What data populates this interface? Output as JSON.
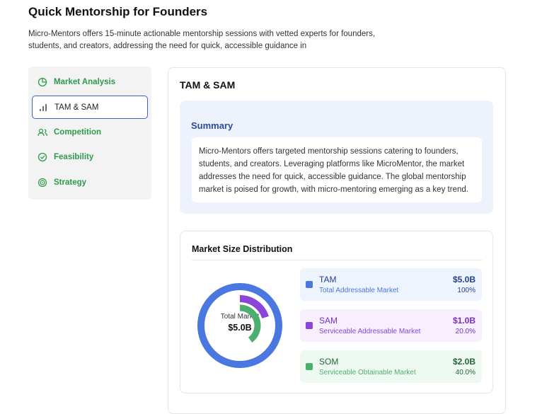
{
  "header": {
    "title": "Quick Mentorship for Founders",
    "description": "Micro-Mentors offers 15-minute actionable mentorship sessions with vetted experts for founders, students, and creators, addressing the need for quick, accessible guidance in"
  },
  "sidebar": {
    "active": 1,
    "items": [
      "Market Analysis",
      "TAM & SAM",
      "Competition",
      "Feasibility",
      "Strategy"
    ]
  },
  "main": {
    "heading": "TAM & SAM",
    "summary": {
      "title": "Summary",
      "text": "Micro-Mentors offers targeted mentorship sessions catering to founders, students, and creators. Leveraging platforms like MicroMentor, the market addresses the need for quick, accessible guidance. The global mentorship market is poised for growth, with micro-mentoring emerging as a key trend."
    },
    "market": {
      "title": "Market Size Distribution",
      "center_label": "Total Market",
      "center_value": "$5.0B",
      "segments": [
        {
          "name": "TAM",
          "description": "Total Addressable Market",
          "value": "$5.0B",
          "share": "100%",
          "color": "#4a78e0"
        },
        {
          "name": "SAM",
          "description": "Serviceable Addressable Market",
          "value": "$1.0B",
          "share": "20.0%",
          "color": "#8b45d9"
        },
        {
          "name": "SOM",
          "description": "Serviceable Obtainable Market",
          "value": "$2.0B",
          "share": "40.0%",
          "color": "#4caf6e"
        }
      ]
    }
  }
}
